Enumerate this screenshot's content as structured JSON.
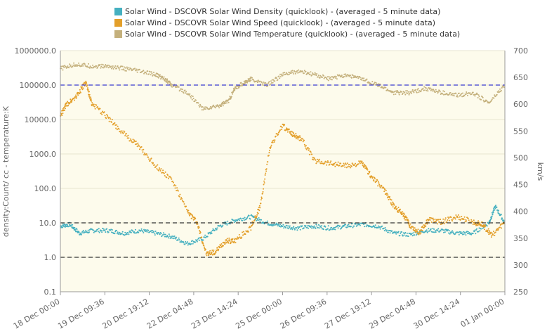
{
  "chart_data": {
    "type": "scatter",
    "legend": [
      {
        "name": "Solar Wind - DSCOVR Solar Wind Density (quicklook) -  (averaged - 5 minute data)",
        "color": "#45b0c0"
      },
      {
        "name": "Solar Wind - DSCOVR Solar Wind Speed (quicklook) -  (averaged - 5 minute data)",
        "color": "#e39f2a"
      },
      {
        "name": "Solar Wind - DSCOVR Solar Wind Temperature (quicklook) -  (averaged - 5 minute data)",
        "color": "#c4b07c"
      }
    ],
    "left_axis": {
      "title": "density:Count/ cc - temperature:K",
      "scale": "log",
      "range": [
        0.1,
        1000000
      ],
      "ticks": [
        "1000000.0",
        "100000.0",
        "10000.0",
        "1000.0",
        "100.0",
        "10.0",
        "1.0",
        "0.1"
      ]
    },
    "right_axis": {
      "title": "km/s",
      "scale": "linear",
      "range": [
        250,
        700
      ],
      "ticks": [
        "700",
        "650",
        "600",
        "550",
        "500",
        "450",
        "400",
        "350",
        "300",
        "250"
      ]
    },
    "x_axis": {
      "unit": "days from 18 Dec 00:00",
      "range": [
        0,
        14
      ],
      "ticks": [
        "18 Dec 00:00",
        "19 Dec 09:36",
        "20 Dec 19:12",
        "22 Dec 04:48",
        "23 Dec 14:24",
        "25 Dec 00:00",
        "26 Dec 09:36",
        "27 Dec 19:12",
        "29 Dec 04:48",
        "30 Dec 14:24",
        "01 Jan 00:00"
      ]
    },
    "reference_lines": [
      {
        "axis": "left",
        "value": 100000,
        "color": "#3a3ad0"
      },
      {
        "axis": "left",
        "value": 10,
        "color": "#333333"
      },
      {
        "axis": "left",
        "value": 1,
        "color": "#333333"
      }
    ],
    "series": [
      {
        "name": "density",
        "axis": "left",
        "color": "#45b0c0",
        "unit": "Count/cc",
        "points": [
          [
            0,
            8
          ],
          [
            0.3,
            9
          ],
          [
            0.6,
            5
          ],
          [
            1,
            6
          ],
          [
            1.5,
            6
          ],
          [
            2,
            5
          ],
          [
            2.5,
            6
          ],
          [
            3,
            5
          ],
          [
            3.5,
            4
          ],
          [
            4,
            2.5
          ],
          [
            4.5,
            3.5
          ],
          [
            5,
            8
          ],
          [
            5.5,
            12
          ],
          [
            6,
            15
          ],
          [
            6.5,
            10
          ],
          [
            7,
            8
          ],
          [
            7.5,
            7
          ],
          [
            8,
            8
          ],
          [
            8.5,
            7
          ],
          [
            9,
            8
          ],
          [
            9.5,
            9
          ],
          [
            10,
            8
          ],
          [
            10.5,
            5
          ],
          [
            11,
            4.5
          ],
          [
            11.5,
            6
          ],
          [
            12,
            6
          ],
          [
            12.5,
            5
          ],
          [
            13,
            5
          ],
          [
            13.5,
            10
          ],
          [
            13.7,
            30
          ],
          [
            14,
            10
          ]
        ]
      },
      {
        "name": "temperature",
        "axis": "left",
        "color": "#c4b07c",
        "unit": "K",
        "points": [
          [
            0,
            300000
          ],
          [
            0.5,
            400000
          ],
          [
            1,
            350000
          ],
          [
            1.5,
            350000
          ],
          [
            2,
            300000
          ],
          [
            2.5,
            250000
          ],
          [
            3,
            200000
          ],
          [
            3.3,
            150000
          ],
          [
            3.5,
            100000
          ],
          [
            4,
            60000
          ],
          [
            4.5,
            20000
          ],
          [
            5,
            25000
          ],
          [
            5.3,
            35000
          ],
          [
            5.5,
            80000
          ],
          [
            5.8,
            120000
          ],
          [
            6,
            150000
          ],
          [
            6.5,
            100000
          ],
          [
            7,
            200000
          ],
          [
            7.5,
            250000
          ],
          [
            8,
            200000
          ],
          [
            8.5,
            150000
          ],
          [
            9,
            200000
          ],
          [
            9.5,
            150000
          ],
          [
            10,
            100000
          ],
          [
            10.5,
            60000
          ],
          [
            11,
            60000
          ],
          [
            11.5,
            80000
          ],
          [
            12,
            60000
          ],
          [
            12.5,
            50000
          ],
          [
            13,
            60000
          ],
          [
            13.5,
            30000
          ],
          [
            14,
            100000
          ]
        ]
      },
      {
        "name": "speed",
        "axis": "right",
        "color": "#e39f2a",
        "unit": "km/s",
        "points": [
          [
            0,
            578
          ],
          [
            0.2,
            600
          ],
          [
            0.5,
            615
          ],
          [
            0.8,
            640
          ],
          [
            1,
            600
          ],
          [
            1.5,
            575
          ],
          [
            2,
            545
          ],
          [
            2.5,
            520
          ],
          [
            3,
            485
          ],
          [
            3.5,
            460
          ],
          [
            4,
            400
          ],
          [
            4.3,
            380
          ],
          [
            4.6,
            320
          ],
          [
            4.9,
            325
          ],
          [
            5.2,
            345
          ],
          [
            5.5,
            345
          ],
          [
            6,
            370
          ],
          [
            6.3,
            410
          ],
          [
            6.6,
            520
          ],
          [
            7,
            560
          ],
          [
            7.3,
            545
          ],
          [
            7.6,
            535
          ],
          [
            8,
            495
          ],
          [
            8.5,
            490
          ],
          [
            9,
            485
          ],
          [
            9.5,
            490
          ],
          [
            9.8,
            465
          ],
          [
            10.2,
            440
          ],
          [
            10.5,
            410
          ],
          [
            10.8,
            395
          ],
          [
            11,
            375
          ],
          [
            11.3,
            360
          ],
          [
            11.6,
            385
          ],
          [
            12,
            380
          ],
          [
            12.5,
            390
          ],
          [
            13,
            380
          ],
          [
            13.3,
            375
          ],
          [
            13.6,
            355
          ],
          [
            14,
            380
          ]
        ]
      }
    ]
  }
}
